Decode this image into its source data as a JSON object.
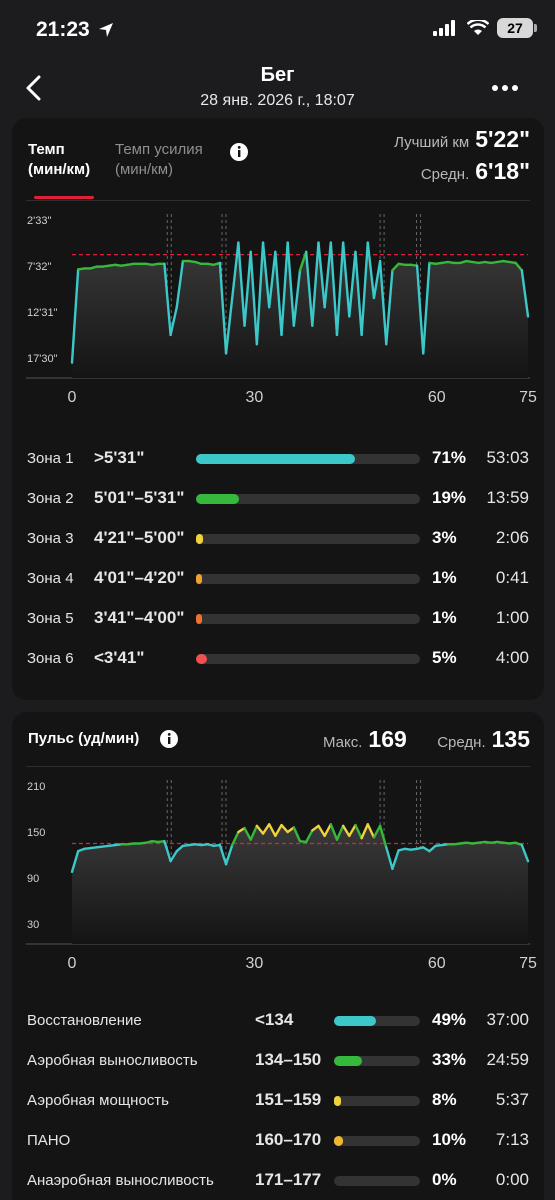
{
  "status": {
    "time": "21:23",
    "battery": "27",
    "location_icon": "location-arrow-icon",
    "signal_icon": "signal-icon",
    "wifi_icon": "wifi-icon"
  },
  "header": {
    "title": "Бег",
    "subtitle": "28 янв. 2026 г., 18:07",
    "back_icon": "chevron-left-icon",
    "more_icon": "more-horizontal-icon"
  },
  "pace": {
    "tab_active_line1": "Темп",
    "tab_active_line2": "(мин/км)",
    "tab_inactive_line1": "Темп усилия",
    "tab_inactive_line2": "(мин/км)",
    "best_label": "Лучший км",
    "best_value": "5'22\"",
    "avg_label": "Средн.",
    "avg_value": "6'18\"",
    "zones": [
      {
        "name": "Зона 1",
        "range": ">5'31\"",
        "pct": "71%",
        "time": "53:03",
        "fraction": 0.71,
        "color": "#3cc8c8"
      },
      {
        "name": "Зона 2",
        "range": "5'01\"–5'31\"",
        "pct": "19%",
        "time": "13:59",
        "fraction": 0.19,
        "color": "#36b83c"
      },
      {
        "name": "Зона 3",
        "range": "4'21\"–5'00\"",
        "pct": "3%",
        "time": "2:06",
        "fraction": 0.03,
        "color": "#f0d23c"
      },
      {
        "name": "Зона 4",
        "range": "4'01\"–4'20\"",
        "pct": "1%",
        "time": "0:41",
        "fraction": 0.01,
        "color": "#f0a030"
      },
      {
        "name": "Зона 5",
        "range": "3'41\"–4'00\"",
        "pct": "1%",
        "time": "1:00",
        "fraction": 0.01,
        "color": "#f07030"
      },
      {
        "name": "Зона 6",
        "range": "<3'41\"",
        "pct": "5%",
        "time": "4:00",
        "fraction": 0.05,
        "color": "#f05050"
      }
    ]
  },
  "hr": {
    "title": "Пульс (уд/мин)",
    "max_label": "Макс.",
    "max_value": "169",
    "avg_label": "Средн.",
    "avg_value": "135",
    "zones": [
      {
        "name": "Восстановление",
        "range": "<134",
        "pct": "49%",
        "time": "37:00",
        "fraction": 0.49,
        "color": "#3cc8c8"
      },
      {
        "name": "Аэробная выносливость",
        "range": "134–150",
        "pct": "33%",
        "time": "24:59",
        "fraction": 0.33,
        "color": "#36b83c"
      },
      {
        "name": "Аэробная мощность",
        "range": "151–159",
        "pct": "8%",
        "time": "5:37",
        "fraction": 0.08,
        "color": "#f0d23c"
      },
      {
        "name": "ПАНО",
        "range": "160–170",
        "pct": "10%",
        "time": "7:13",
        "fraction": 0.1,
        "color": "#f0b830"
      },
      {
        "name": "Анаэробная выносливость",
        "range": "171–177",
        "pct": "0%",
        "time": "0:00",
        "fraction": 0.0,
        "color": "#f07030"
      }
    ]
  },
  "chart_data": [
    {
      "type": "line",
      "y_ticks": [
        "2'33\"",
        "7'32\"",
        "12'31\"",
        "17'30\""
      ],
      "x_ticks": [
        "0",
        "30",
        "60",
        "75"
      ],
      "xlim": [
        0,
        75
      ],
      "avg_line": "6'18\"",
      "segment_breaks": [
        16,
        25,
        51,
        57
      ],
      "series": [
        {
          "values": [
            18,
            7.9,
            7.8,
            7.8,
            7.6,
            7.6,
            7.5,
            7.4,
            7.5,
            7.4,
            7.3,
            7.3,
            7.3,
            7.4,
            7.3,
            7.3,
            15,
            12,
            7.0,
            7.0,
            7.1,
            7.3,
            7.3,
            7.4,
            7.2,
            17,
            11,
            5,
            14,
            6,
            16,
            5,
            12,
            6,
            15,
            5,
            14,
            8,
            6,
            14,
            5,
            12,
            5,
            15,
            5,
            13,
            6,
            15,
            5,
            11,
            7,
            16,
            8,
            7.3,
            7.4,
            7.4,
            7.5,
            17,
            7.2,
            7.3,
            7.2,
            7.1,
            7.2,
            7.2,
            7.0,
            7.1,
            7.2,
            7.1,
            7.2,
            7.1,
            7.0,
            7.1,
            7.2,
            8,
            13
          ]
        }
      ]
    },
    {
      "type": "line",
      "y_ticks": [
        "210",
        "150",
        "90",
        "30"
      ],
      "x_ticks": [
        "0",
        "30",
        "60",
        "75"
      ],
      "xlim": [
        0,
        75
      ],
      "ylim": [
        30,
        210
      ],
      "avg_line": 135,
      "segment_breaks": [
        16,
        25,
        51,
        57
      ],
      "series": [
        {
          "values": [
            98,
            125,
            128,
            129,
            130,
            131,
            132,
            133,
            134,
            134,
            135,
            135,
            136,
            138,
            137,
            138,
            112,
            125,
            132,
            133,
            134,
            133,
            134,
            132,
            133,
            108,
            133,
            150,
            155,
            140,
            158,
            148,
            160,
            145,
            159,
            150,
            156,
            138,
            137,
            152,
            158,
            145,
            160,
            140,
            158,
            145,
            159,
            142,
            160,
            143,
            158,
            130,
            102,
            126,
            128,
            127,
            128,
            130,
            125,
            132,
            133,
            134,
            134,
            135,
            136,
            135,
            136,
            137,
            136,
            137,
            136,
            135,
            136,
            133,
            112
          ]
        }
      ]
    }
  ]
}
